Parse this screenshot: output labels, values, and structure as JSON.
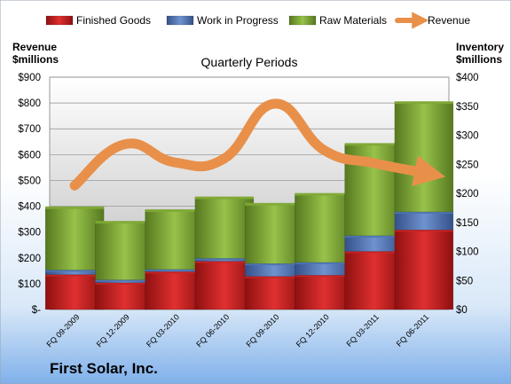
{
  "company": "First Solar, Inc.",
  "chart_data": {
    "type": "bar",
    "subtitle": "Quarterly Periods",
    "categories": [
      "FQ 09-2009",
      "FQ 12-2009",
      "FQ 03-2010",
      "FQ 06-2010",
      "FQ 09-2010",
      "FQ 12-2010",
      "FQ 03-2011",
      "FQ 06-2011"
    ],
    "left_axis": {
      "label_line1": "Revenue",
      "label_line2": "$millions",
      "min": 0,
      "max": 900,
      "step": 100,
      "tick_labels": [
        "$-",
        "$100",
        "$200",
        "$300",
        "$400",
        "$500",
        "$600",
        "$700",
        "$800",
        "$900"
      ]
    },
    "right_axis": {
      "label_line1": "Inventory",
      "label_line2": "$millions",
      "min": 0,
      "max": 400,
      "step": 50,
      "tick_labels": [
        "$0",
        "$50",
        "$100",
        "$150",
        "$200",
        "$250",
        "$300",
        "$350",
        "$400"
      ]
    },
    "stacked": true,
    "grid": true,
    "legend_position": "top",
    "series": [
      {
        "name": "Finished Goods",
        "axis": "right",
        "kind": "bar",
        "color": "#cc2222",
        "values": [
          60,
          46,
          65,
          83,
          57,
          59,
          100,
          137
        ]
      },
      {
        "name": "Work in Progress",
        "axis": "right",
        "kind": "bar",
        "color": "#4f76b8",
        "values": [
          8,
          5,
          4,
          5,
          22,
          22,
          27,
          31
        ]
      },
      {
        "name": "Raw Materials",
        "axis": "right",
        "kind": "bar",
        "color": "#7faa35",
        "values": [
          108,
          100,
          102,
          105,
          103,
          118,
          158,
          189
        ]
      },
      {
        "name": "Revenue",
        "axis": "left",
        "kind": "line",
        "color": "#e8904a",
        "values": [
          480,
          640,
          570,
          585,
          797,
          617,
          567,
          530
        ]
      }
    ]
  }
}
